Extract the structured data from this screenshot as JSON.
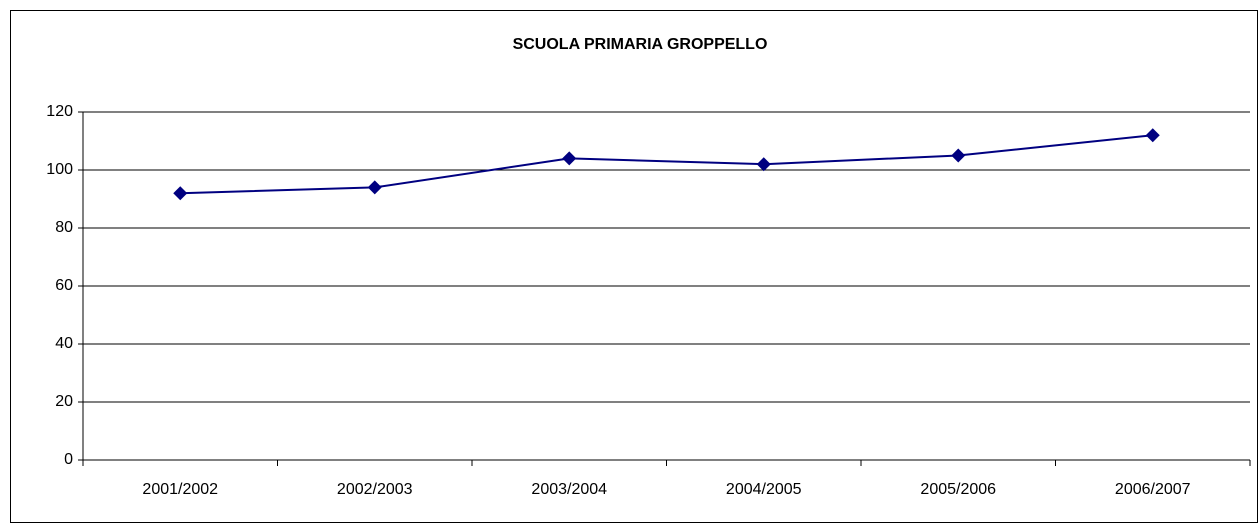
{
  "chart_data": {
    "type": "line",
    "title": "SCUOLA PRIMARIA GROPPELLO",
    "categories": [
      "2001/2002",
      "2002/2003",
      "2003/2004",
      "2004/2005",
      "2005/2006",
      "2006/2007"
    ],
    "series": [
      {
        "color": "#000080",
        "values": [
          92,
          94,
          104,
          102,
          105,
          112
        ]
      }
    ],
    "ylim": [
      0,
      120
    ],
    "yticks": [
      0,
      20,
      40,
      60,
      80,
      100,
      120
    ],
    "grid": true
  }
}
